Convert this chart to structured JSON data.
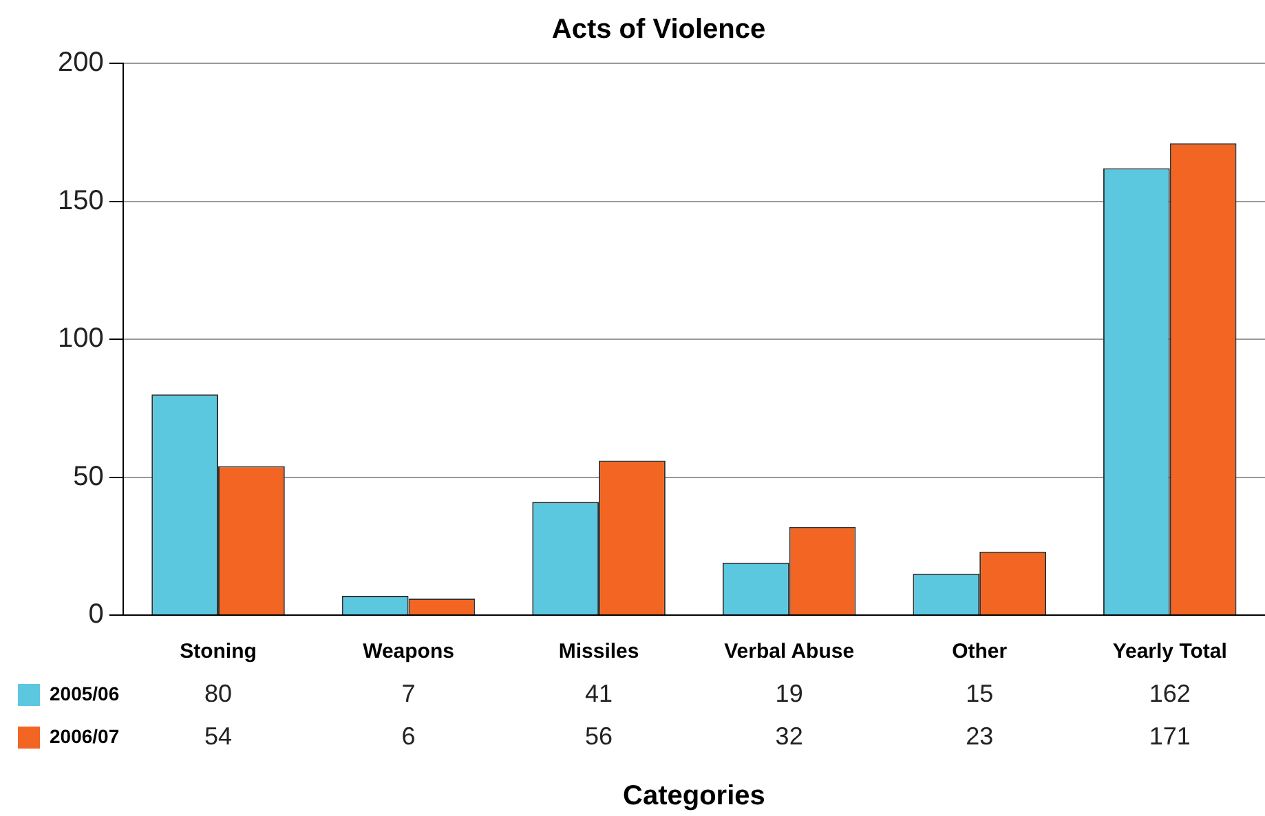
{
  "chart_data": {
    "type": "bar",
    "title": "Acts of Violence",
    "xlabel": "Categories",
    "categories": [
      "Stoning",
      "Weapons",
      "Missiles",
      "Verbal Abuse",
      "Other",
      "Yearly Total"
    ],
    "series": [
      {
        "name": "2005/06",
        "color": "#5bc8e0",
        "values": [
          80,
          7,
          41,
          19,
          15,
          162
        ]
      },
      {
        "name": "2006/07",
        "color": "#f26522",
        "values": [
          54,
          6,
          56,
          32,
          23,
          171
        ]
      }
    ],
    "ylim": [
      0,
      200
    ],
    "yticks": [
      0,
      50,
      100,
      150,
      200
    ],
    "grid": "y",
    "legend": "bottom left",
    "data_labels": true
  }
}
